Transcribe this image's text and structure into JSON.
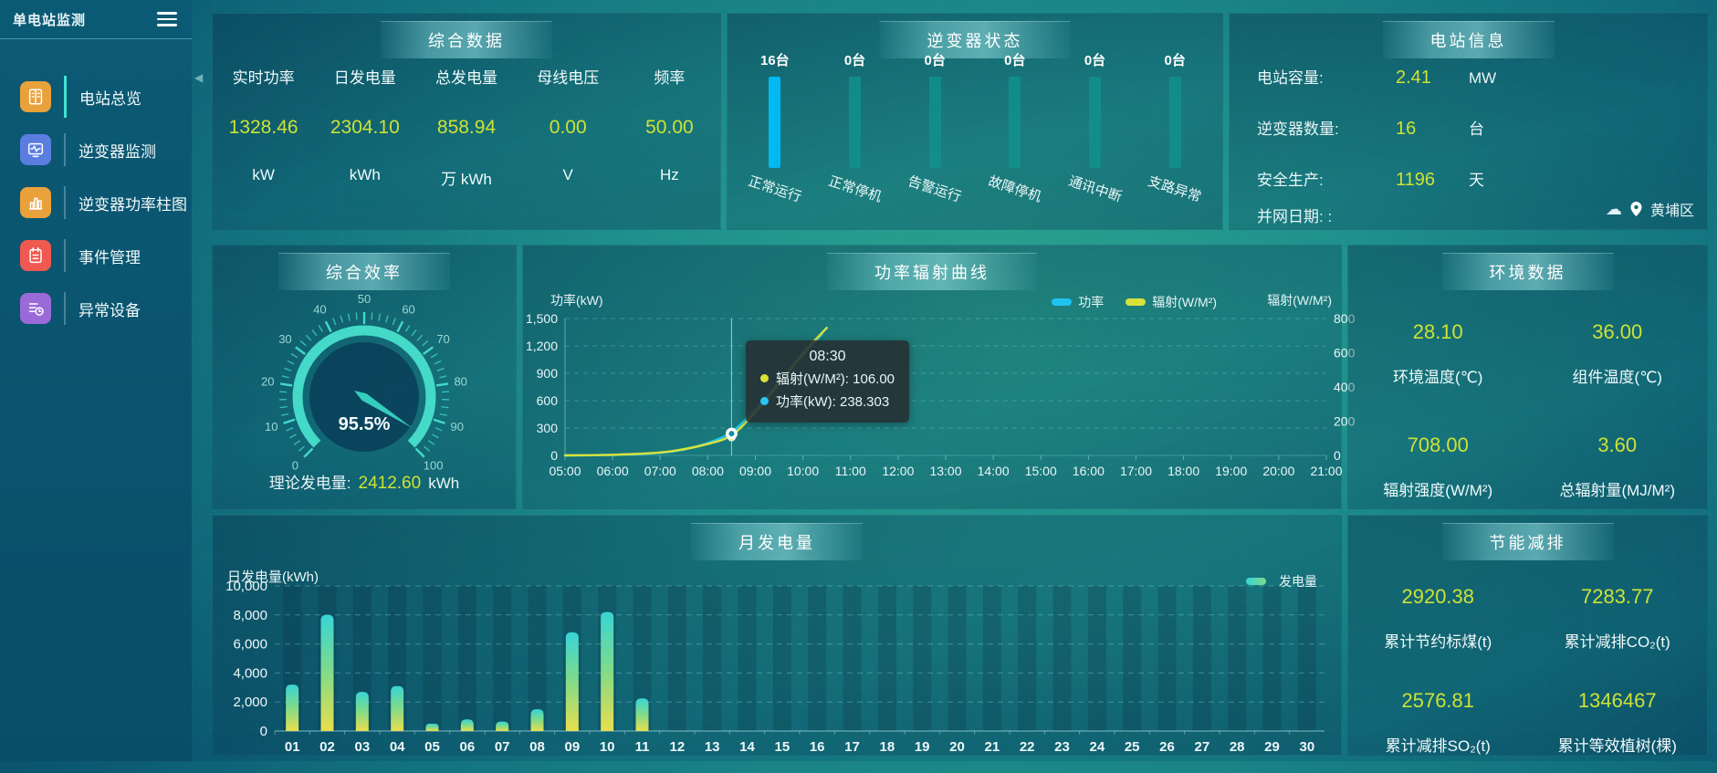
{
  "app_title": "单电站监测",
  "sidebar": {
    "items": [
      {
        "label": "电站总览",
        "icon": "overview-icon",
        "color": "#e9a13b",
        "active": true
      },
      {
        "label": "逆变器监测",
        "icon": "inverter-monitor-icon",
        "color": "#5b7de0",
        "active": false
      },
      {
        "label": "逆变器功率柱图",
        "icon": "power-bars-icon",
        "color": "#e9a13b",
        "active": false
      },
      {
        "label": "事件管理",
        "icon": "event-manage-icon",
        "color": "#ef5950",
        "active": false
      },
      {
        "label": "异常设备",
        "icon": "abnormal-device-icon",
        "color": "#9a6bd8",
        "active": false
      }
    ]
  },
  "summary": {
    "title": "综合数据",
    "metrics": [
      {
        "label": "实时功率",
        "value": "1328.46",
        "unit": "kW"
      },
      {
        "label": "日发电量",
        "value": "2304.10",
        "unit": "kWh"
      },
      {
        "label": "总发电量",
        "value": "858.94",
        "unit": "万 kWh"
      },
      {
        "label": "母线电压",
        "value": "0.00",
        "unit": "V"
      },
      {
        "label": "频率",
        "value": "50.00",
        "unit": "Hz"
      }
    ]
  },
  "inverter_status": {
    "title": "逆变器状态"
  },
  "station_info": {
    "title": "电站信息",
    "rows": [
      {
        "label": "电站容量:",
        "value": "2.41",
        "unit": "MW"
      },
      {
        "label": "逆变器数量:",
        "value": "16",
        "unit": "台"
      },
      {
        "label": "安全生产:",
        "value": "1196",
        "unit": "天"
      }
    ],
    "grid_date": "并网日期: :",
    "location": "黄埔区"
  },
  "efficiency": {
    "title": "综合效率",
    "theory_label": "理论发电量:",
    "theory_value": "2412.60",
    "theory_unit": "kWh"
  },
  "power_curve": {
    "title": "功率辐射曲线"
  },
  "environment": {
    "title": "环境数据",
    "metrics": [
      {
        "value": "28.10",
        "label": "环境温度(℃)"
      },
      {
        "value": "36.00",
        "label": "组件温度(℃)"
      },
      {
        "value": "708.00",
        "label": "辐射强度(W/M²)"
      },
      {
        "value": "3.60",
        "label": "总辐射量(MJ/M²)"
      }
    ]
  },
  "monthly": {
    "title": "月发电量"
  },
  "saving": {
    "title": "节能减排",
    "metrics": [
      {
        "value": "2920.38",
        "label": "累计节约标煤(t)"
      },
      {
        "value": "7283.77",
        "label": "累计减排CO₂(t)"
      },
      {
        "value": "2576.81",
        "label": "累计减排SO₂(t)"
      },
      {
        "value": "1346467",
        "label": "累计等效植树(棵)"
      }
    ]
  },
  "chart_data": [
    {
      "id": "inverter_status",
      "type": "bar",
      "title": "逆变器状态",
      "categories": [
        "正常运行",
        "正常停机",
        "告警运行",
        "故障停机",
        "通讯中断",
        "支路异常"
      ],
      "values": [
        16,
        0,
        0,
        0,
        0,
        0
      ],
      "value_labels": [
        "16台",
        "0台",
        "0台",
        "0台",
        "0台",
        "0台"
      ],
      "bar_colors": [
        "#00b9f2",
        "#12918c",
        "#12918c",
        "#12918c",
        "#12918c",
        "#12918c"
      ]
    },
    {
      "id": "efficiency_gauge",
      "type": "gauge",
      "min": 0,
      "max": 100,
      "value": 95.5,
      "display": "95.5%",
      "major_ticks": [
        0,
        10,
        20,
        30,
        40,
        50,
        60,
        70,
        80,
        90,
        100
      ],
      "color": "#45d9c8"
    },
    {
      "id": "power_radiation",
      "type": "line",
      "title": "功率辐射曲线",
      "x_labels": [
        "05:00",
        "06:00",
        "07:00",
        "08:00",
        "09:00",
        "10:00",
        "11:00",
        "12:00",
        "13:00",
        "14:00",
        "15:00",
        "16:00",
        "17:00",
        "18:00",
        "19:00",
        "20:00",
        "21:00"
      ],
      "left_axis": {
        "title": "功率(kW)",
        "ticks": [
          "1,500",
          "1,200",
          "900",
          "600",
          "300",
          "0"
        ],
        "max": 1500
      },
      "right_axis": {
        "title": "辐射(W/M²)",
        "ticks": [
          "800",
          "600",
          "400",
          "200",
          "0"
        ],
        "max": 800
      },
      "legend": [
        {
          "name": "功率",
          "color": "#1ec3f2"
        },
        {
          "name": "辐射(W/M²)",
          "color": "#d9e23a"
        }
      ],
      "series": [
        {
          "name": "功率",
          "axis": "left",
          "color": "#1ec3f2",
          "points": [
            [
              5,
              0
            ],
            [
              6,
              3
            ],
            [
              7,
              25
            ],
            [
              7.5,
              60
            ],
            [
              8,
              130
            ],
            [
              8.5,
              238.303
            ],
            [
              9,
              500
            ],
            [
              9.5,
              800
            ],
            [
              10,
              1100
            ],
            [
              10.4,
              1330
            ]
          ]
        },
        {
          "name": "辐射(W/M²)",
          "axis": "right",
          "color": "#d9e23a",
          "points": [
            [
              5,
              0
            ],
            [
              6,
              2
            ],
            [
              7,
              15
            ],
            [
              7.5,
              35
            ],
            [
              8,
              65
            ],
            [
              8.5,
              106
            ],
            [
              9,
              250
            ],
            [
              9.5,
              420
            ],
            [
              10,
              600
            ],
            [
              10.5,
              745
            ]
          ]
        }
      ],
      "crosshair": {
        "x_label": "08:30",
        "x_hour": 8.5
      },
      "tooltip": {
        "title": "08:30",
        "rows": [
          {
            "text": "辐射(W/M²): 106.00",
            "color": "#d9e23a"
          },
          {
            "text": "功率(kW): 238.303",
            "color": "#2cc5f4"
          }
        ]
      }
    },
    {
      "id": "monthly_energy",
      "type": "bar",
      "title": "月发电量",
      "ylabel": "日发电量(kWh)",
      "legend": "发电量",
      "categories": [
        "01",
        "02",
        "03",
        "04",
        "05",
        "06",
        "07",
        "08",
        "09",
        "10",
        "11",
        "12",
        "13",
        "14",
        "15",
        "16",
        "17",
        "18",
        "19",
        "20",
        "21",
        "22",
        "23",
        "24",
        "25",
        "26",
        "27",
        "28",
        "29",
        "30"
      ],
      "values": [
        3200,
        8000,
        2700,
        3100,
        500,
        800,
        650,
        1500,
        6800,
        8200,
        2250,
        0,
        0,
        0,
        0,
        0,
        0,
        0,
        0,
        0,
        0,
        0,
        0,
        0,
        0,
        0,
        0,
        0,
        0,
        0
      ],
      "yticks": [
        "10,000",
        "8,000",
        "6,000",
        "4,000",
        "2,000",
        "0"
      ],
      "ymax": 10000,
      "bar_gradient": [
        "#38d4d6",
        "#7edb8b",
        "#e9de4d"
      ]
    }
  ]
}
